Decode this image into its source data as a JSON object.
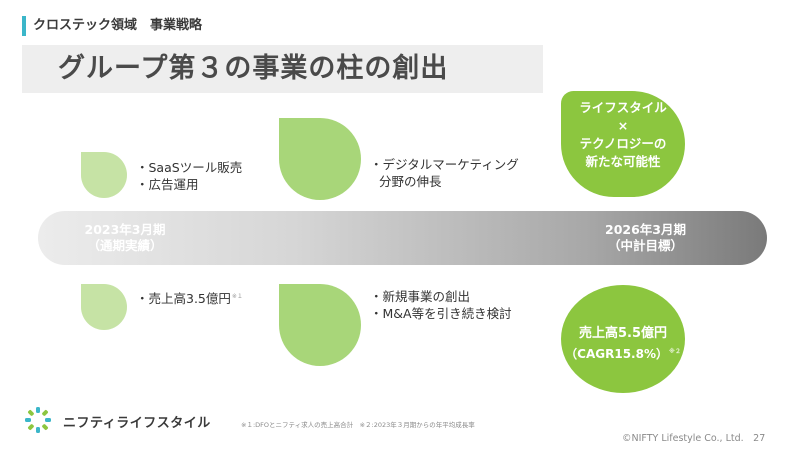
{
  "header": {
    "section": "クロステック領域　事業戦略",
    "title": "グループ第３の事業の柱の創出"
  },
  "timeline": {
    "start": {
      "line1": "2023年3月期",
      "line2": "（通期実績）"
    },
    "end": {
      "line1": "2026年3月期",
      "line2": "（中計目標）"
    }
  },
  "top_row": {
    "item1": {
      "lines": [
        "・SaaSツール販売",
        "・広告運用"
      ]
    },
    "item2": {
      "lines": [
        "・デジタルマーケティング",
        "分野の伸長"
      ]
    },
    "goal": {
      "lines": [
        "ライフスタイル",
        "×",
        "テクノロジーの",
        "新たな可能性"
      ]
    }
  },
  "bottom_row": {
    "item1": {
      "text": "・売上高3.5億円",
      "note": "※１"
    },
    "item2": {
      "lines": [
        "・新規事業の創出",
        "・M&A等を引き続き検討"
      ]
    },
    "goal": {
      "line1": "売上高5.5億円",
      "line2": "（CAGR15.8%）",
      "note": "※２"
    }
  },
  "footer": {
    "notes": "※１:DFOとニフティ求人の売上高合計　※２:2023年３月期からの年平均成長率",
    "copyright": "©NIFTY Lifestyle Co., Ltd.　27",
    "logo_text": "ニフティライフスタイル"
  },
  "colors": {
    "accent": "#3bb6c9",
    "green": "#8cc63f",
    "leaf_light": "#c6e3a5",
    "leaf_mid": "#a8d679"
  }
}
